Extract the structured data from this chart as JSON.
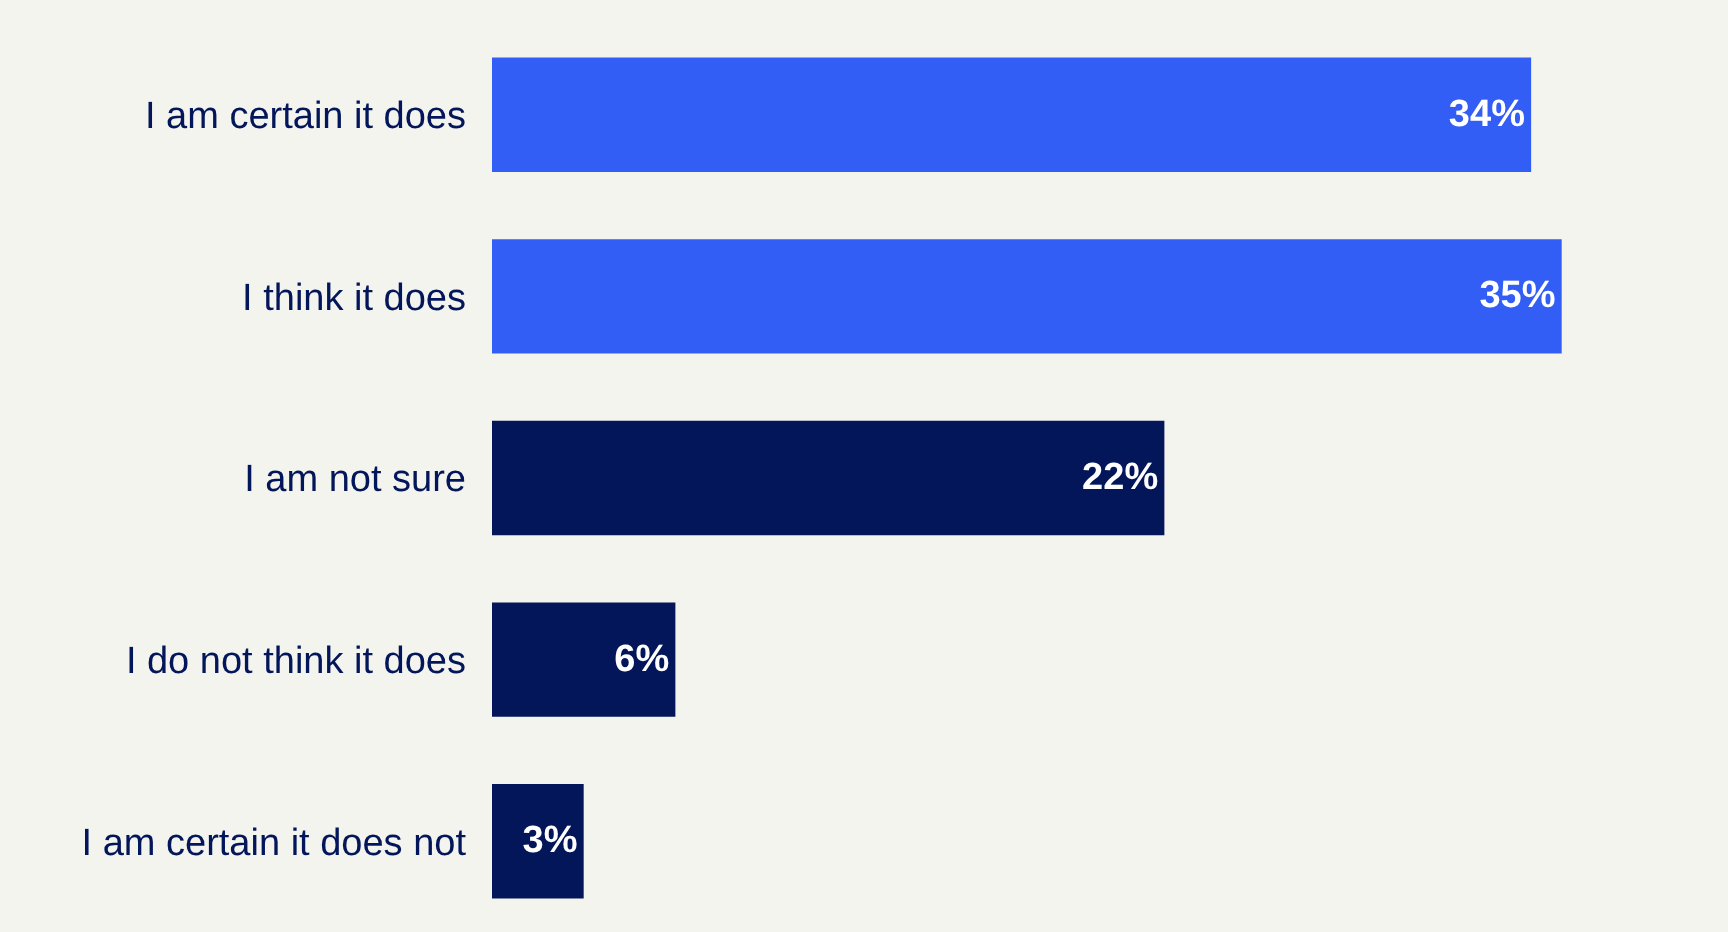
{
  "chart_data": {
    "type": "bar",
    "orientation": "horizontal",
    "categories": [
      "I am certain it does",
      "I think it does",
      "I am not sure",
      "I do not think it does",
      "I am certain it does not"
    ],
    "values": [
      34,
      35,
      22,
      6,
      3
    ],
    "colors": [
      "#335ef5",
      "#335ef5",
      "#04165a",
      "#04165a",
      "#04165a"
    ],
    "value_labels": [
      "34%",
      "35%",
      "22%",
      "6%",
      "3%"
    ]
  }
}
